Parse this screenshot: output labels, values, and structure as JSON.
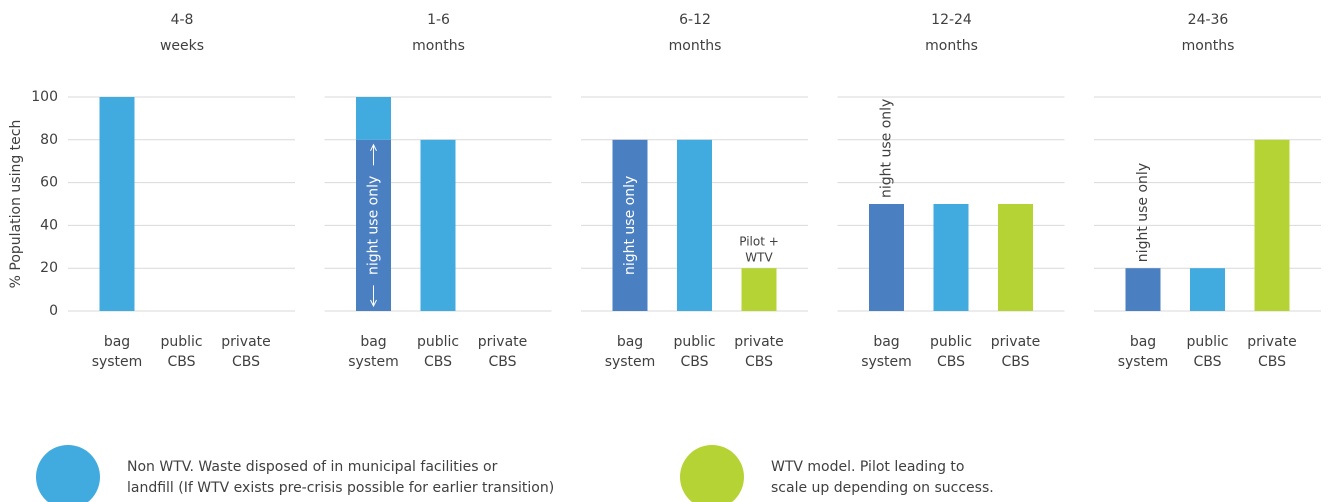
{
  "chart_data": [
    {
      "type": "bar",
      "title": [
        "4-8",
        "weeks"
      ],
      "ylabel": "% Population using tech",
      "categories": [
        [
          "bag",
          "system"
        ],
        [
          "public",
          "CBS"
        ],
        [
          "private",
          "CBS"
        ]
      ],
      "series": [
        {
          "color": "#41abdf",
          "values": [
            100,
            null,
            null
          ]
        }
      ],
      "ylim": [
        0,
        100
      ],
      "yticks": [
        0,
        20,
        40,
        60,
        80,
        100
      ],
      "grid": true,
      "annotations": []
    },
    {
      "type": "bar",
      "title": [
        "1-6",
        "months"
      ],
      "categories": [
        [
          "bag",
          "system"
        ],
        [
          "public",
          "CBS"
        ],
        [
          "private",
          "CBS"
        ]
      ],
      "series": [
        {
          "color": "#4a7fc1",
          "values": [
            80,
            null,
            null
          ]
        },
        {
          "color": "#41abdf",
          "values": [
            20,
            80,
            null
          ]
        }
      ],
      "ylim": [
        0,
        100
      ],
      "yticks": [
        0,
        20,
        40,
        60,
        80,
        100
      ],
      "grid": true,
      "annotations": [
        {
          "text": [
            "night use only"
          ],
          "category": 0,
          "placement": "inside-arrows"
        }
      ]
    },
    {
      "type": "bar",
      "title": [
        "6-12",
        "months"
      ],
      "categories": [
        [
          "bag",
          "system"
        ],
        [
          "public",
          "CBS"
        ],
        [
          "private",
          "CBS"
        ]
      ],
      "series": [
        {
          "color": "#4a7fc1",
          "values": [
            80,
            null,
            null
          ]
        },
        {
          "color": "#41abdf",
          "values": [
            null,
            80,
            null
          ]
        },
        {
          "color": "#b5d334",
          "values": [
            null,
            null,
            20
          ]
        }
      ],
      "ylim": [
        0,
        100
      ],
      "yticks": [
        0,
        20,
        40,
        60,
        80,
        100
      ],
      "grid": true,
      "annotations": [
        {
          "text": [
            "night use only"
          ],
          "category": 0,
          "placement": "inside"
        },
        {
          "text": [
            "Pilot +",
            "WTV"
          ],
          "category": 2,
          "placement": "above"
        }
      ]
    },
    {
      "type": "bar",
      "title": [
        "12-24",
        "months"
      ],
      "categories": [
        [
          "bag",
          "system"
        ],
        [
          "public",
          "CBS"
        ],
        [
          "private",
          "CBS"
        ]
      ],
      "series": [
        {
          "color": "#4a7fc1",
          "values": [
            50,
            null,
            null
          ]
        },
        {
          "color": "#41abdf",
          "values": [
            null,
            50,
            null
          ]
        },
        {
          "color": "#b5d334",
          "values": [
            null,
            null,
            50
          ]
        }
      ],
      "ylim": [
        0,
        100
      ],
      "yticks": [
        0,
        20,
        40,
        60,
        80,
        100
      ],
      "grid": true,
      "annotations": [
        {
          "text": [
            "night use only"
          ],
          "category": 0,
          "placement": "above-rotated"
        }
      ]
    },
    {
      "type": "bar",
      "title": [
        "24-36",
        "months"
      ],
      "categories": [
        [
          "bag",
          "system"
        ],
        [
          "public",
          "CBS"
        ],
        [
          "private",
          "CBS"
        ]
      ],
      "series": [
        {
          "color": "#4a7fc1",
          "values": [
            20,
            null,
            null
          ]
        },
        {
          "color": "#41abdf",
          "values": [
            null,
            20,
            null
          ]
        },
        {
          "color": "#b5d334",
          "values": [
            null,
            null,
            80
          ]
        }
      ],
      "ylim": [
        0,
        100
      ],
      "yticks": [
        0,
        20,
        40,
        60,
        80,
        100
      ],
      "grid": true,
      "annotations": [
        {
          "text": [
            "night use only"
          ],
          "category": 0,
          "placement": "above-rotated"
        }
      ]
    }
  ],
  "legend": [
    {
      "color": "#41abdf",
      "text": [
        "Non WTV. Waste disposed of in municipal facilities or",
        "landfill (If WTV exists pre-crisis possible for earlier transition)"
      ]
    },
    {
      "color": "#b5d334",
      "text": [
        "WTV model. Pilot leading to",
        "scale up depending on success."
      ]
    }
  ]
}
